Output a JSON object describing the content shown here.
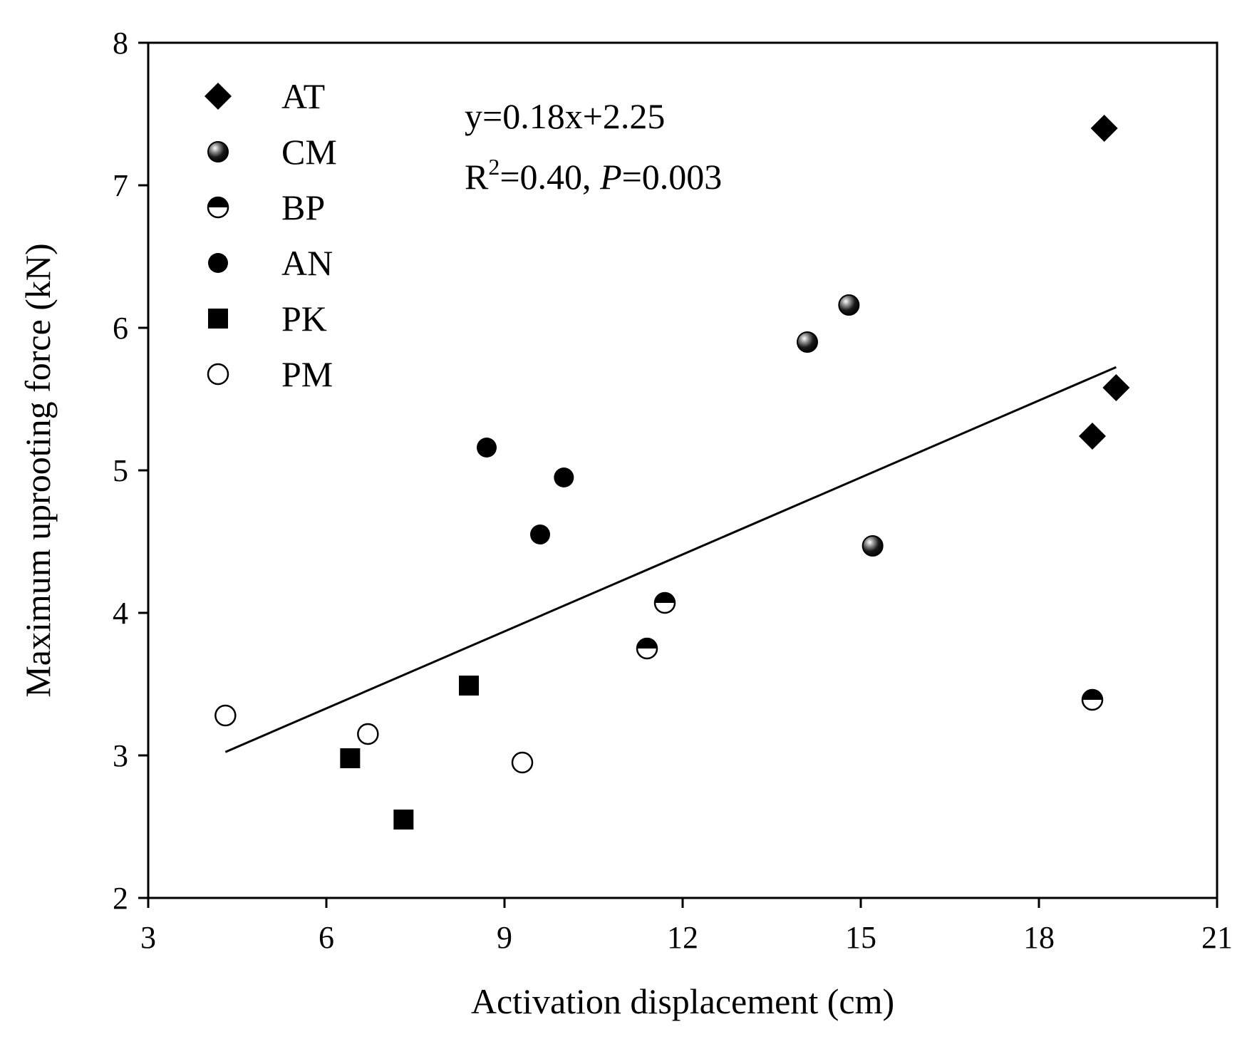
{
  "chart_data": {
    "type": "scatter",
    "title": "",
    "xlabel": "Activation displacement (cm)",
    "ylabel": "Maximum uprooting force (kN)",
    "xlim": [
      3,
      21
    ],
    "ylim": [
      2,
      8
    ],
    "xticks": [
      3,
      6,
      9,
      12,
      15,
      18,
      21
    ],
    "yticks": [
      2,
      3,
      4,
      5,
      6,
      7,
      8
    ],
    "grid": false,
    "legend_position": "top-left",
    "series": [
      {
        "name": "AT",
        "marker": "diamond-filled",
        "points": [
          [
            19.1,
            7.4
          ],
          [
            18.9,
            5.24
          ],
          [
            19.3,
            5.58
          ]
        ]
      },
      {
        "name": "CM",
        "marker": "sphere-shaded",
        "points": [
          [
            14.1,
            5.9
          ],
          [
            14.8,
            6.16
          ],
          [
            15.2,
            4.47
          ]
        ]
      },
      {
        "name": "BP",
        "marker": "circle-half-filled",
        "points": [
          [
            11.7,
            4.07
          ],
          [
            11.4,
            3.75
          ],
          [
            18.9,
            3.39
          ]
        ]
      },
      {
        "name": "AN",
        "marker": "circle-filled",
        "points": [
          [
            8.7,
            5.16
          ],
          [
            10.0,
            4.95
          ],
          [
            9.6,
            4.55
          ]
        ]
      },
      {
        "name": "PK",
        "marker": "square-filled",
        "points": [
          [
            8.4,
            3.49
          ],
          [
            6.4,
            2.98
          ],
          [
            7.3,
            2.55
          ]
        ]
      },
      {
        "name": "PM",
        "marker": "circle-open",
        "points": [
          [
            4.3,
            3.28
          ],
          [
            6.7,
            3.15
          ],
          [
            9.3,
            2.95
          ]
        ]
      }
    ],
    "fit_line": {
      "slope": 0.18,
      "intercept": 2.25,
      "x_range": [
        4.3,
        19.3
      ]
    },
    "annotation": {
      "equation": "y=0.18x+2.25",
      "r_prefix": "R",
      "r_sup": "2",
      "r_value": "=0.40, ",
      "p_label": "P",
      "p_value": "=0.003"
    }
  }
}
